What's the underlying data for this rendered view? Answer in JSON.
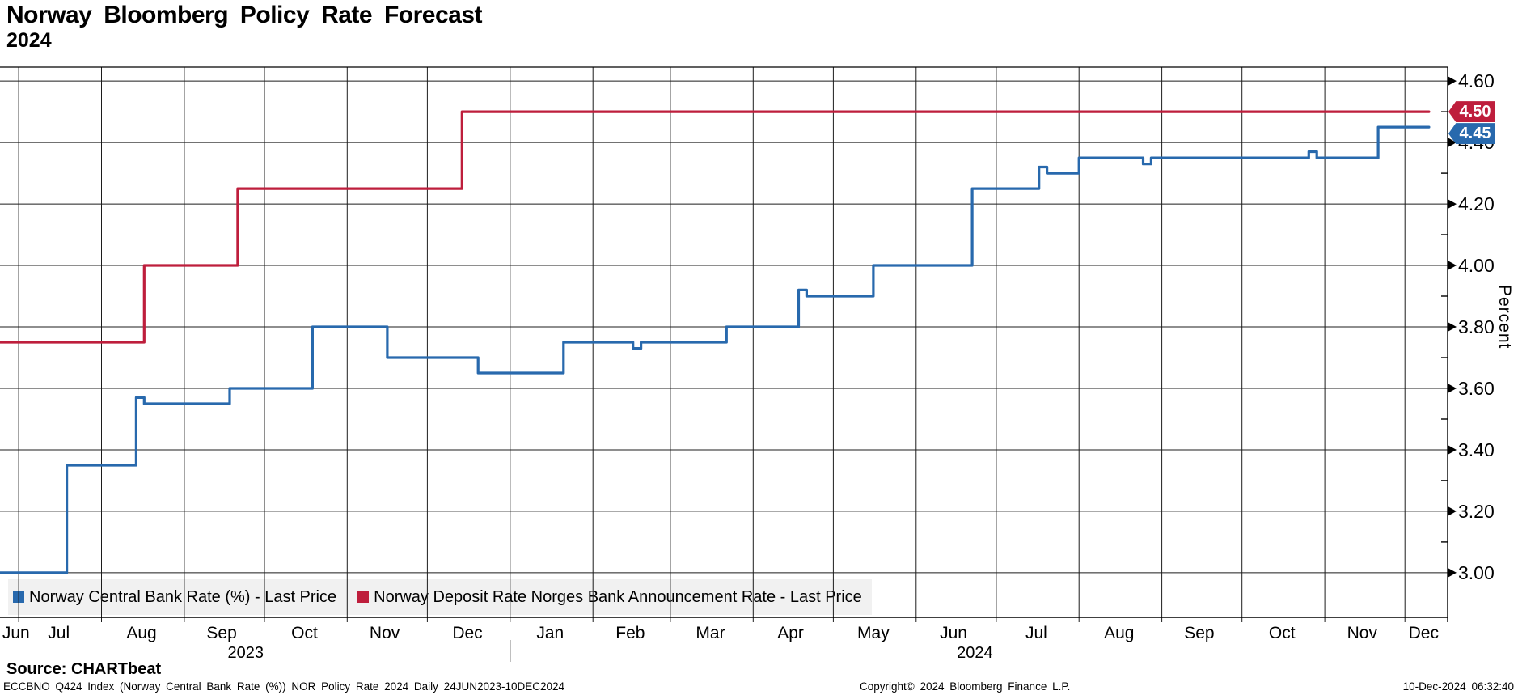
{
  "header": {
    "title": "Norway Bloomberg Policy Rate Forecast",
    "subtitle": "2024"
  },
  "colors": {
    "blue": "#2869ad",
    "red": "#be1e3c",
    "grid": "#1c1c1c",
    "axis": "#000000",
    "year_separator": "#8a8a8a",
    "legend_bg": "#f1f1f1",
    "badge_text": "#ffffff"
  },
  "legend": {
    "items": [
      {
        "label": "Norway Central Bank Rate (%) - Last Price",
        "color": "#2869ad"
      },
      {
        "label": "Norway Deposit Rate Norges Bank Announcement Rate - Last Price",
        "color": "#be1e3c"
      }
    ]
  },
  "badges": [
    {
      "text": "4.50",
      "value": 4.5,
      "color": "#be1e3c"
    },
    {
      "text": "4.45",
      "value": 4.45,
      "color": "#2869ad"
    }
  ],
  "axis": {
    "y_label": "Percent",
    "y_ticks": [
      {
        "value": 4.6,
        "label": "4.60"
      },
      {
        "value": 4.4,
        "label": "4.40"
      },
      {
        "value": 4.2,
        "label": "4.20"
      },
      {
        "value": 4.0,
        "label": "4.00"
      },
      {
        "value": 3.8,
        "label": "3.80"
      },
      {
        "value": 3.6,
        "label": "3.60"
      },
      {
        "value": 3.4,
        "label": "3.40"
      },
      {
        "value": 3.2,
        "label": "3.20"
      },
      {
        "value": 3.0,
        "label": "3.00"
      }
    ],
    "y_minor_ticks": [
      4.5,
      4.3,
      4.1,
      3.9,
      3.7,
      3.5,
      3.3,
      3.1
    ],
    "months": [
      {
        "label": "Jun",
        "at": "2023-06-30"
      },
      {
        "label": "Jul",
        "at": "2023-07-16"
      },
      {
        "label": "Aug",
        "at": "2023-08-16"
      },
      {
        "label": "Sep",
        "at": "2023-09-15"
      },
      {
        "label": "Oct",
        "at": "2023-10-16"
      },
      {
        "label": "Nov",
        "at": "2023-11-15"
      },
      {
        "label": "Dec",
        "at": "2023-12-16"
      },
      {
        "label": "Jan",
        "at": "2024-01-16"
      },
      {
        "label": "Feb",
        "at": "2024-02-15"
      },
      {
        "label": "Mar",
        "at": "2024-03-16"
      },
      {
        "label": "Apr",
        "at": "2024-04-15"
      },
      {
        "label": "May",
        "at": "2024-05-16"
      },
      {
        "label": "Jun",
        "at": "2024-06-15"
      },
      {
        "label": "Jul",
        "at": "2024-07-16"
      },
      {
        "label": "Aug",
        "at": "2024-08-16"
      },
      {
        "label": "Sep",
        "at": "2024-09-15"
      },
      {
        "label": "Oct",
        "at": "2024-10-16"
      },
      {
        "label": "Nov",
        "at": "2024-11-15"
      },
      {
        "label": "Dec",
        "at": "2024-12-08"
      }
    ],
    "years": [
      {
        "label": "2023",
        "at": "2023-09-24"
      },
      {
        "label": "2024",
        "at": "2024-06-23"
      }
    ],
    "month_gridlines": [
      "2023-07-01",
      "2023-08-01",
      "2023-09-01",
      "2023-10-01",
      "2023-11-01",
      "2023-12-01",
      "2024-01-01",
      "2024-02-01",
      "2024-03-01",
      "2024-04-01",
      "2024-05-01",
      "2024-06-01",
      "2024-07-01",
      "2024-08-01",
      "2024-09-01",
      "2024-10-01",
      "2024-11-01",
      "2024-12-01"
    ],
    "year_separator": "2024-01-01"
  },
  "chart_data": {
    "type": "line",
    "step": true,
    "title": "Norway Bloomberg Policy Rate Forecast",
    "subtitle": "2024",
    "ylabel": "Percent",
    "ylim": [
      2.855,
      4.645
    ],
    "xrange": [
      "2023-06-24",
      "2024-12-17"
    ],
    "grid": true,
    "legend_position": "bottom-left",
    "series": [
      {
        "name": "Norway Central Bank Rate (%) - Last Price",
        "color": "#2869ad",
        "last_price": 4.45,
        "points": [
          [
            "2023-06-24",
            3.0
          ],
          [
            "2023-07-19",
            3.35
          ],
          [
            "2023-08-14",
            3.57
          ],
          [
            "2023-08-17",
            3.55
          ],
          [
            "2023-09-18",
            3.6
          ],
          [
            "2023-10-19",
            3.8
          ],
          [
            "2023-11-16",
            3.7
          ],
          [
            "2023-12-20",
            3.65
          ],
          [
            "2024-01-21",
            3.75
          ],
          [
            "2024-02-16",
            3.73
          ],
          [
            "2024-02-19",
            3.75
          ],
          [
            "2024-03-22",
            3.8
          ],
          [
            "2024-04-18",
            3.92
          ],
          [
            "2024-04-21",
            3.9
          ],
          [
            "2024-05-16",
            4.0
          ],
          [
            "2024-06-22",
            4.25
          ],
          [
            "2024-07-17",
            4.32
          ],
          [
            "2024-07-20",
            4.3
          ],
          [
            "2024-08-01",
            4.35
          ],
          [
            "2024-08-25",
            4.33
          ],
          [
            "2024-08-28",
            4.35
          ],
          [
            "2024-10-26",
            4.37
          ],
          [
            "2024-10-29",
            4.35
          ],
          [
            "2024-11-21",
            4.45
          ],
          [
            "2024-12-10",
            4.45
          ]
        ]
      },
      {
        "name": "Norway Deposit Rate Norges Bank Announcement Rate - Last Price",
        "color": "#be1e3c",
        "last_price": 4.5,
        "points": [
          [
            "2023-06-24",
            3.75
          ],
          [
            "2023-08-17",
            4.0
          ],
          [
            "2023-09-21",
            4.25
          ],
          [
            "2023-12-14",
            4.5
          ],
          [
            "2024-12-10",
            4.5
          ]
        ]
      }
    ]
  },
  "footer": {
    "source": "Source: CHARTbeat",
    "ticker_line": "ECCBNO Q424 Index (Norway Central Bank Rate (%)) NOR Policy Rate 2024  Daily 24JUN2023-10DEC2024",
    "copyright": "Copyright© 2024 Bloomberg Finance L.P.",
    "timestamp": "10-Dec-2024 06:32:40"
  }
}
